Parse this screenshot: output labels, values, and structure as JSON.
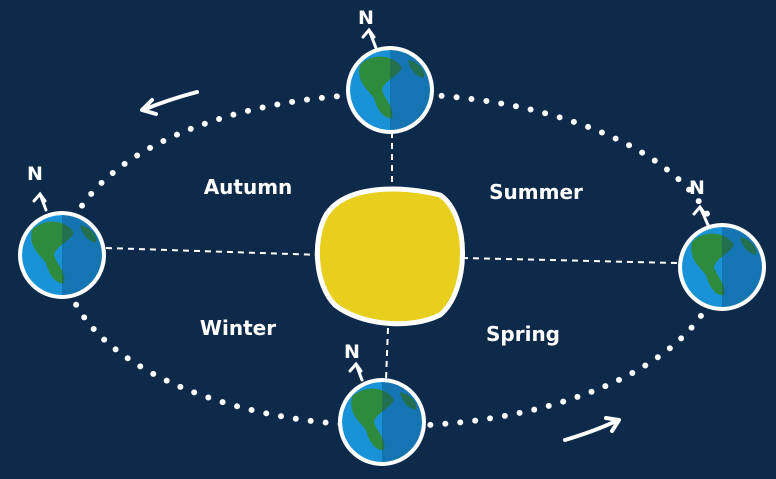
{
  "seasons": [
    {
      "label": "Autumn"
    },
    {
      "label": "Summer"
    },
    {
      "label": "Winter"
    },
    {
      "label": "Spring"
    }
  ],
  "north_labels": [
    "N",
    "N",
    "N",
    "N"
  ]
}
